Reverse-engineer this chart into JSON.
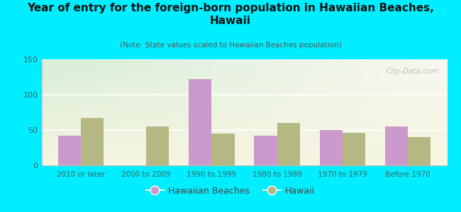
{
  "title": "Year of entry for the foreign-born population in Hawaiian Beaches,\nHawaii",
  "subtitle": "(Note: State values scaled to Hawaiian Beaches population)",
  "categories": [
    "2010 or later",
    "2000 to 2009",
    "1990 to 1999",
    "1980 to 1989",
    "1970 to 1979",
    "Before 1970"
  ],
  "hawaiian_beaches": [
    42,
    0,
    122,
    42,
    50,
    55
  ],
  "hawaii": [
    67,
    55,
    45,
    60,
    46,
    40
  ],
  "bar_color_hb": "#cc99cc",
  "bar_color_hi": "#b5b882",
  "background_color": "#00eeff",
  "ylim": [
    0,
    150
  ],
  "yticks": [
    0,
    50,
    100,
    150
  ],
  "watermark": "City-Data.com",
  "legend_hb": "Hawaiian Beaches",
  "legend_hi": "Hawaii",
  "bar_width": 0.35,
  "title_color": "#111111",
  "subtitle_color": "#555555",
  "tick_label_color": "#336666",
  "grid_color": "#dddddd"
}
